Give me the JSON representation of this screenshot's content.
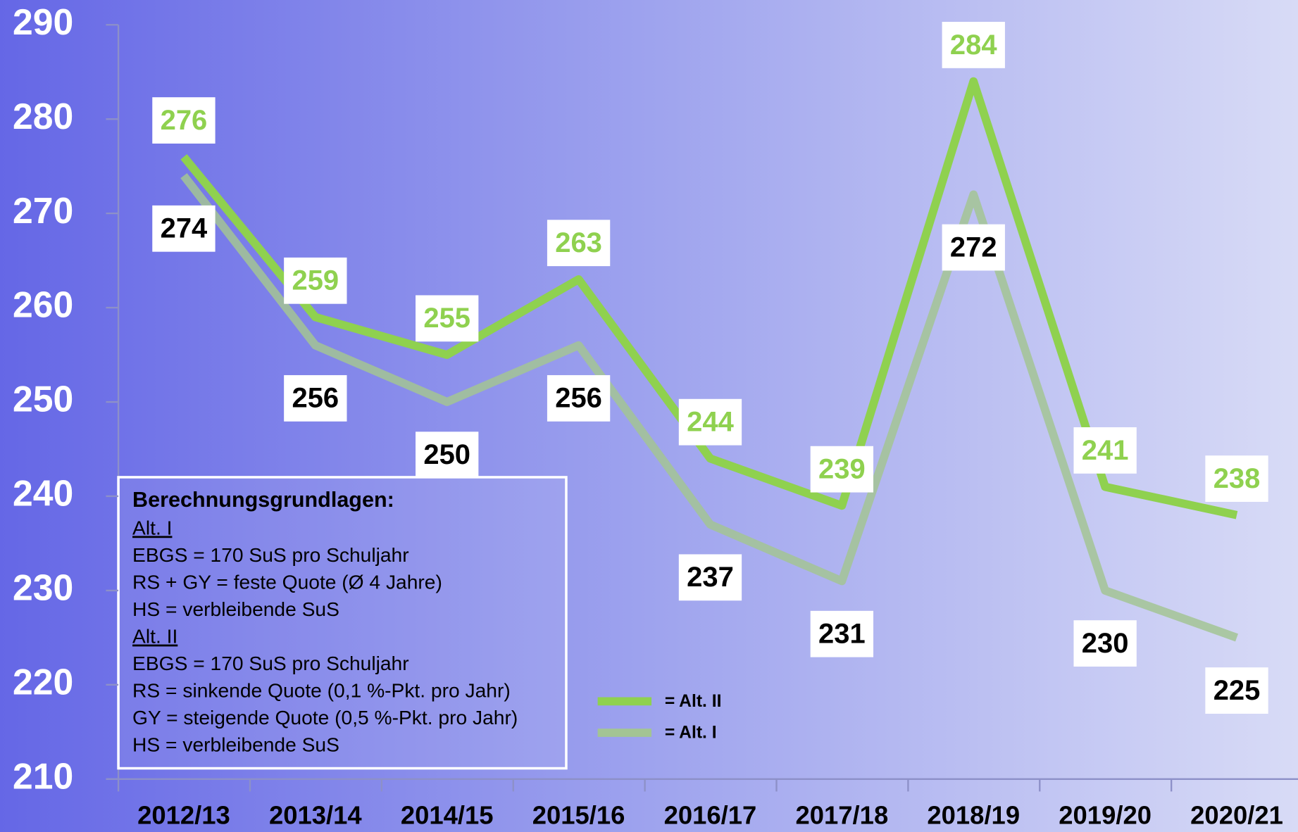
{
  "chart_data": {
    "type": "line",
    "categories": [
      "2012/13",
      "2013/14",
      "2014/15",
      "2015/16",
      "2016/17",
      "2017/18",
      "2018/19",
      "2019/20",
      "2020/21"
    ],
    "series": [
      {
        "name": "= Alt. II",
        "color": "#8fd14f",
        "label_color": "#8fd14f",
        "values": [
          276,
          259,
          255,
          263,
          244,
          239,
          284,
          241,
          238
        ]
      },
      {
        "name": "= Alt. I",
        "color": "#a3c494",
        "label_color": "#000000",
        "values": [
          274,
          256,
          250,
          256,
          237,
          231,
          272,
          230,
          225
        ]
      }
    ],
    "ylim": [
      210,
      290
    ],
    "yticks": [
      210,
      220,
      230,
      240,
      250,
      260,
      270,
      280,
      290
    ],
    "note": {
      "title": "Berechnungsgrundlagen:",
      "lines": [
        {
          "text": "Alt. I",
          "underline": true
        },
        {
          "text": "EBGS = 170 SuS pro Schuljahr",
          "underline": false
        },
        {
          "text": "RS + GY = feste Quote (Ø 4 Jahre)",
          "underline": false
        },
        {
          "text": "HS = verbleibende SuS",
          "underline": false
        },
        {
          "text": "Alt. II",
          "underline": true
        },
        {
          "text": "EBGS = 170 SuS pro Schuljahr",
          "underline": false
        },
        {
          "text": "RS = sinkende Quote (0,1 %-Pkt. pro Jahr)",
          "underline": false
        },
        {
          "text": "GY = steigende Quote (0,5 %-Pkt. pro Jahr)",
          "underline": false
        },
        {
          "text": "HS = verbleibende SuS",
          "underline": false
        }
      ]
    }
  }
}
